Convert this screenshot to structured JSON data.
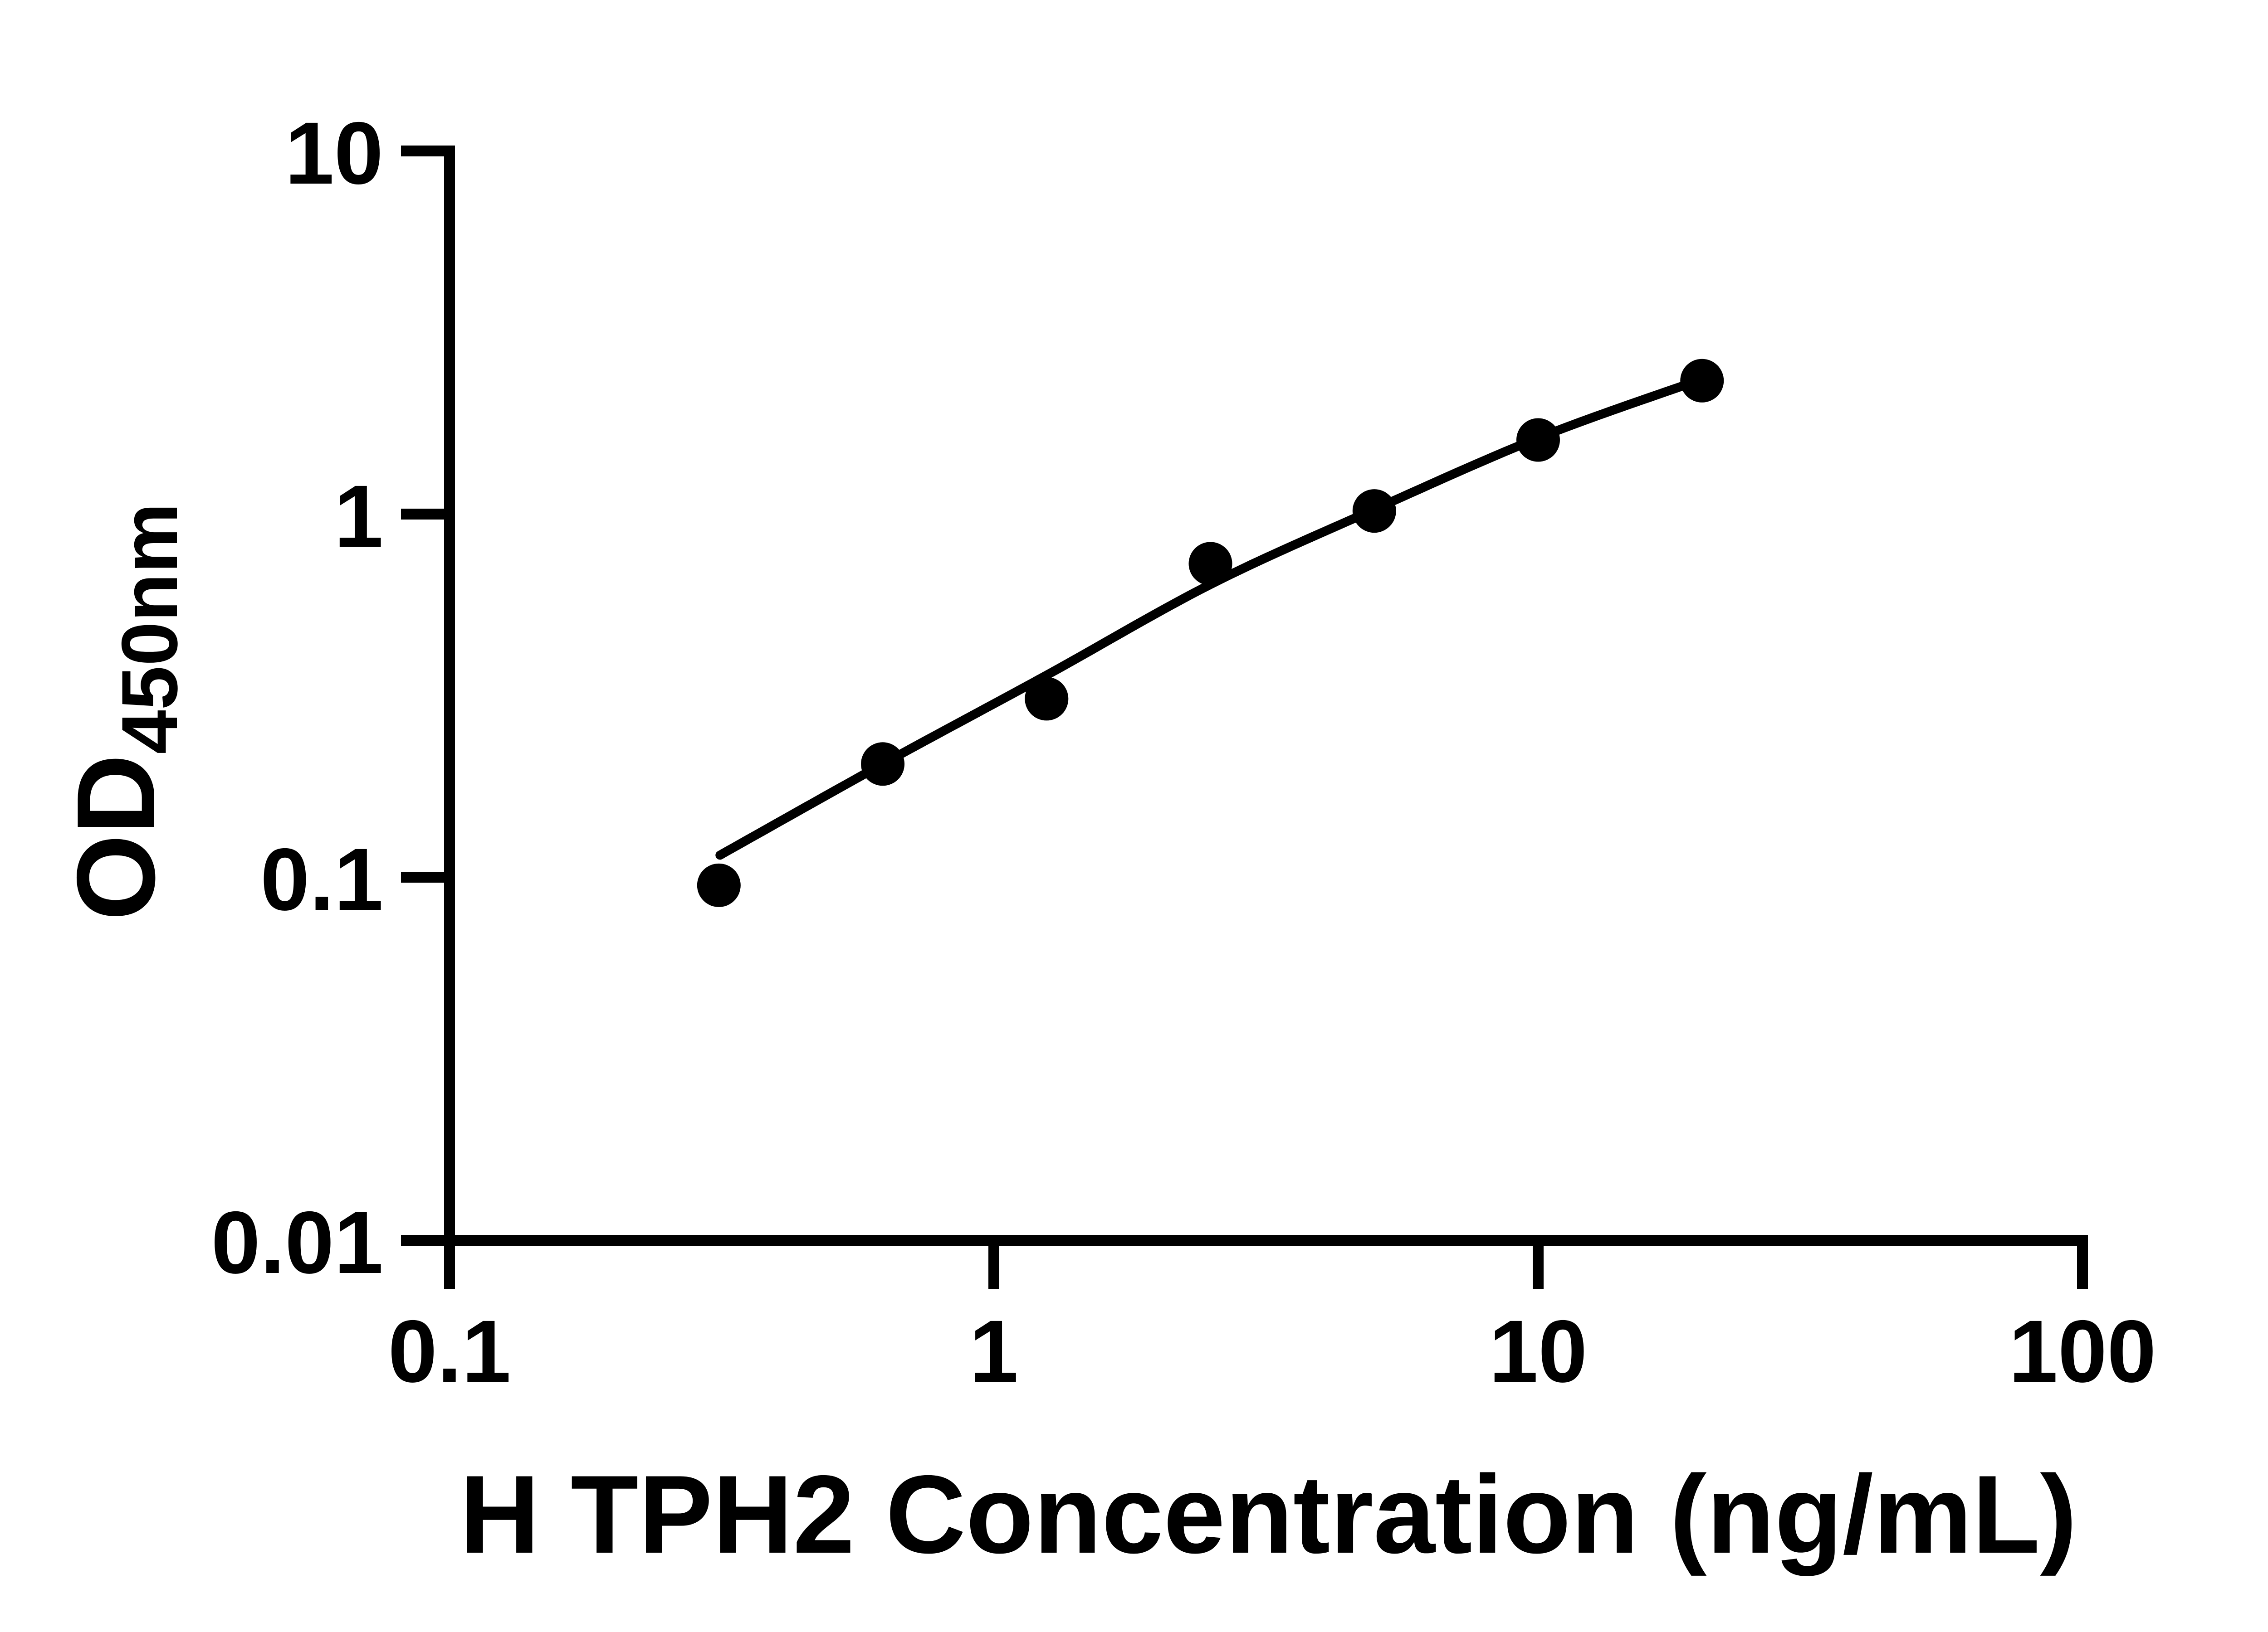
{
  "chart_data": {
    "type": "scatter",
    "title": "",
    "xlabel": "H TPH2 Concentration (ng/mL)",
    "ylabel_main": "OD",
    "ylabel_sub": "450nm",
    "x_scale": "log",
    "y_scale": "log",
    "xlim": [
      0.1,
      100
    ],
    "ylim": [
      0.01,
      10
    ],
    "grid": "off",
    "legend": "none",
    "x_ticks": [
      {
        "value": 0.1,
        "label": "0.1"
      },
      {
        "value": 1,
        "label": "1"
      },
      {
        "value": 10,
        "label": "10"
      },
      {
        "value": 100,
        "label": "100"
      }
    ],
    "y_ticks": [
      {
        "value": 0.01,
        "label": "0.01"
      },
      {
        "value": 0.1,
        "label": "0.1"
      },
      {
        "value": 1,
        "label": "1"
      },
      {
        "value": 10,
        "label": "10"
      }
    ],
    "points": [
      {
        "x": 0.3125,
        "od": 0.095
      },
      {
        "x": 0.625,
        "od": 0.205
      },
      {
        "x": 1.25,
        "od": 0.31
      },
      {
        "x": 2.5,
        "od": 0.73
      },
      {
        "x": 5,
        "od": 1.02
      },
      {
        "x": 10,
        "od": 1.6
      },
      {
        "x": 20,
        "od": 2.33
      }
    ],
    "fit_curve": [
      [
        0.314,
        0.115
      ],
      [
        0.625,
        0.205
      ],
      [
        1.25,
        0.36
      ],
      [
        2.5,
        0.64
      ],
      [
        5,
        1.03
      ],
      [
        10,
        1.62
      ],
      [
        19.3,
        2.31
      ]
    ],
    "marker_color": "#000000",
    "line_color": "#000000",
    "axis_color": "#000000",
    "background": "#ffffff"
  }
}
